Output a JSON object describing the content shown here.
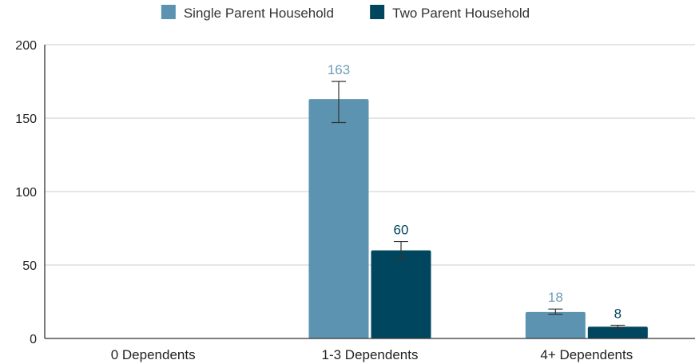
{
  "chart_data": {
    "type": "bar",
    "categories": [
      "0 Dependents",
      "1-3 Dependents",
      "4+ Dependents"
    ],
    "series": [
      {
        "name": "Single Parent Household",
        "values": [
          0,
          163,
          18
        ],
        "labels": [
          "",
          "163",
          "18"
        ],
        "error": [
          [
            0,
            0
          ],
          [
            147,
            175
          ],
          [
            16.5,
            20
          ]
        ],
        "color": "#5b93b0",
        "label_color": "#6f9cb8"
      },
      {
        "name": "Two Parent Household",
        "values": [
          0,
          60,
          8
        ],
        "labels": [
          "",
          "60",
          "8"
        ],
        "error": [
          [
            0,
            0
          ],
          [
            54,
            66
          ],
          [
            7,
            9
          ]
        ],
        "color": "#00465f",
        "label_color": "#00465f"
      }
    ],
    "ylim": [
      0,
      200
    ],
    "yticks": [
      0,
      50,
      100,
      150,
      200
    ],
    "grid": true,
    "legend": "top-center",
    "title": "",
    "xlabel": "",
    "ylabel": ""
  }
}
